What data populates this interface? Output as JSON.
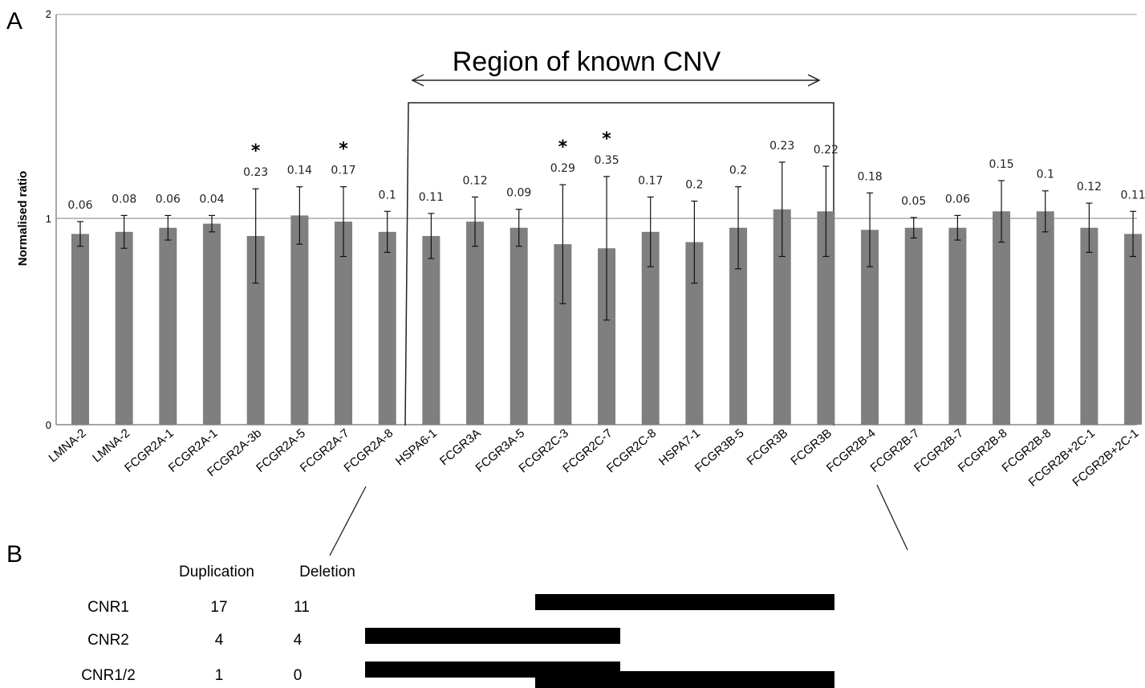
{
  "panel_a_label": "A",
  "panel_b_label": "B",
  "chart_data": {
    "type": "bar",
    "ylabel": "Normalised ratio",
    "xlabel": "",
    "title": "",
    "ylim": [
      0,
      2
    ],
    "yticks": [
      "0",
      "1",
      "2"
    ],
    "reference_line": 1,
    "grid": false,
    "categories": [
      "LMNA-2",
      "LMNA-2",
      "FCGR2A-1",
      "FCGR2A-1",
      "FCGR2A-3b",
      "FCGR2A-5",
      "FCGR2A-7",
      "FCGR2A-8",
      "HSPA6-1",
      "FCGR3A",
      "FCGR3A-5",
      "FCGR2C-3",
      "FCGR2C-7",
      "FCGR2C-8",
      "HSPA7-1",
      "FCGR3B-5",
      "FCGR3B",
      "FCGR3B",
      "FCGR2B-4",
      "FCGR2B-7",
      "FCGR2B-7",
      "FCGR2B-8",
      "FCGR2B-8",
      "FCGR2B+2C-1",
      "FCGR2B+2C-1"
    ],
    "values": [
      0.93,
      0.94,
      0.96,
      0.98,
      0.92,
      1.02,
      0.99,
      0.94,
      0.92,
      0.99,
      0.96,
      0.88,
      0.86,
      0.94,
      0.89,
      0.96,
      1.05,
      1.04,
      0.95,
      0.96,
      0.96,
      1.04,
      1.04,
      0.96,
      0.93
    ],
    "errors": [
      0.06,
      0.08,
      0.06,
      0.04,
      0.23,
      0.14,
      0.17,
      0.1,
      0.11,
      0.12,
      0.09,
      0.29,
      0.35,
      0.17,
      0.2,
      0.2,
      0.23,
      0.22,
      0.18,
      0.05,
      0.06,
      0.15,
      0.1,
      0.12,
      0.11
    ],
    "error_labels": [
      "0.06",
      "0.08",
      "0.06",
      "0.04",
      "0.23",
      "0.14",
      "0.17",
      "0.1",
      "0.11",
      "0.12",
      "0.09",
      "0.29",
      "0.35",
      "0.17",
      "0.2",
      "0.2",
      "0.23",
      "0.22",
      "0.18",
      "0.05",
      "0.06",
      "0.15",
      "0.1",
      "0.12",
      "0.11"
    ],
    "significant": [
      4,
      6,
      11,
      12
    ],
    "significance_marker": "*",
    "bar_color": "#7f7f7f",
    "region_annotation": {
      "text": "Region of known CNV",
      "from_category": 8,
      "to_category": 17
    }
  },
  "table": {
    "headers": [
      "",
      "Duplication",
      "Deletion"
    ],
    "rows": [
      {
        "name": "CNR1",
        "duplication": "17",
        "deletion": "11"
      },
      {
        "name": "CNR2",
        "duplication": "4",
        "deletion": "4"
      },
      {
        "name": "CNR1/2",
        "duplication": "1",
        "deletion": "0"
      }
    ]
  }
}
